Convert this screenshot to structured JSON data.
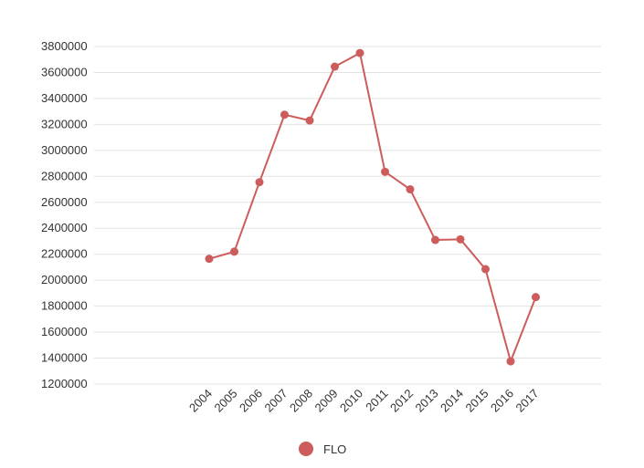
{
  "chart_data": {
    "type": "line",
    "x": [
      "2004",
      "2005",
      "2006",
      "2007",
      "2008",
      "2009",
      "2010",
      "2011",
      "2012",
      "2013",
      "2014",
      "2015",
      "2016",
      "2017"
    ],
    "series": [
      {
        "name": "FLO",
        "color": "#cd5c5c",
        "values": [
          2165000,
          2220000,
          2755000,
          3275000,
          3230000,
          3645000,
          3750000,
          2835000,
          2700000,
          2310000,
          2315000,
          2085000,
          1375000,
          1870000
        ]
      }
    ],
    "y_ticks": [
      "1200000",
      "1400000",
      "1600000",
      "1800000",
      "2000000",
      "2200000",
      "2400000",
      "2600000",
      "2800000",
      "3000000",
      "3200000",
      "3400000",
      "3600000",
      "3800000"
    ],
    "ylim": [
      1200000,
      3800000
    ],
    "grid": true,
    "legend_position": "bottom-center",
    "title": "",
    "xlabel": "",
    "ylabel": ""
  }
}
